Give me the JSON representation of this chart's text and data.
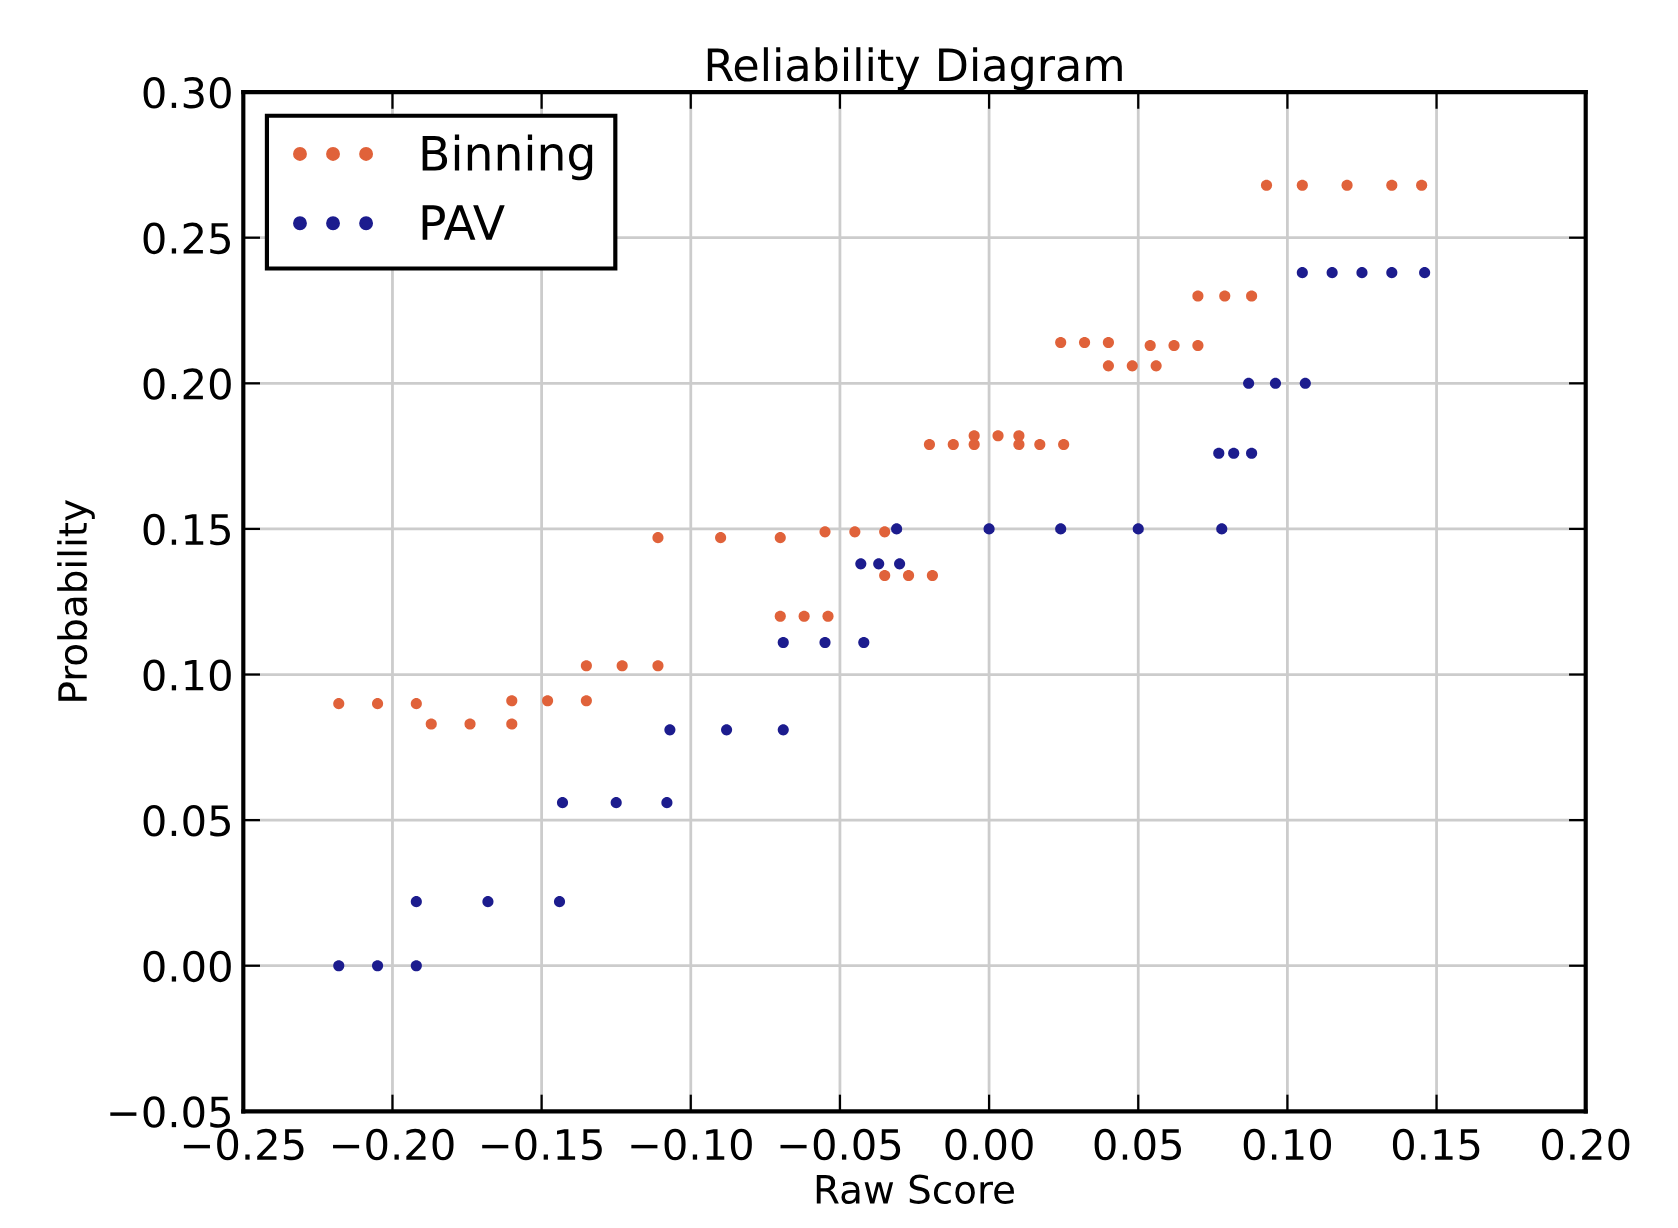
{
  "chart_data": {
    "type": "scatter",
    "title": "Reliability Diagram",
    "xlabel": "Raw Score",
    "ylabel": "Probability",
    "xlim": [
      -0.25,
      0.2
    ],
    "ylim": [
      -0.05,
      0.3
    ],
    "xticks": [
      {
        "value": -0.25,
        "label": "−0.25"
      },
      {
        "value": -0.2,
        "label": "−0.20"
      },
      {
        "value": -0.15,
        "label": "−0.15"
      },
      {
        "value": -0.1,
        "label": "−0.10"
      },
      {
        "value": -0.05,
        "label": "−0.05"
      },
      {
        "value": 0,
        "label": "0.00"
      },
      {
        "value": 0.05,
        "label": "0.05"
      },
      {
        "value": 0.1,
        "label": "0.10"
      },
      {
        "value": 0.15,
        "label": "0.15"
      },
      {
        "value": 0.2,
        "label": "0.20"
      }
    ],
    "yticks": [
      {
        "value": -0.05,
        "label": "−0.05"
      },
      {
        "value": 0,
        "label": "0.00"
      },
      {
        "value": 0.05,
        "label": "0.05"
      },
      {
        "value": 0.1,
        "label": "0.10"
      },
      {
        "value": 0.15,
        "label": "0.15"
      },
      {
        "value": 0.2,
        "label": "0.20"
      },
      {
        "value": 0.25,
        "label": "0.25"
      },
      {
        "value": 0.3,
        "label": "0.30"
      }
    ],
    "grid": true,
    "legend": "top left",
    "marker": "circle",
    "series": [
      {
        "name": "Binning",
        "color": "#e0623a",
        "x": [
          -0.218,
          -0.205,
          -0.192,
          -0.187,
          -0.174,
          -0.16,
          -0.16,
          -0.148,
          -0.135,
          -0.135,
          -0.123,
          -0.111,
          -0.111,
          -0.09,
          -0.07,
          -0.07,
          -0.062,
          -0.054,
          -0.055,
          -0.045,
          -0.035,
          -0.035,
          -0.027,
          -0.019,
          -0.02,
          -0.012,
          -0.005,
          -0.005,
          0.003,
          0.01,
          0.01,
          0.017,
          0.025,
          0.024,
          0.032,
          0.04,
          0.04,
          0.048,
          0.056,
          0.054,
          0.062,
          0.07,
          0.07,
          0.079,
          0.088,
          0.093,
          0.105,
          0.12,
          0.135,
          0.145
        ],
        "values": [
          0.09,
          0.09,
          0.09,
          0.083,
          0.083,
          0.083,
          0.091,
          0.091,
          0.091,
          0.103,
          0.103,
          0.103,
          0.147,
          0.147,
          0.147,
          0.12,
          0.12,
          0.12,
          0.149,
          0.149,
          0.149,
          0.134,
          0.134,
          0.134,
          0.179,
          0.179,
          0.179,
          0.182,
          0.182,
          0.182,
          0.179,
          0.179,
          0.179,
          0.214,
          0.214,
          0.214,
          0.206,
          0.206,
          0.206,
          0.213,
          0.213,
          0.213,
          0.23,
          0.23,
          0.23,
          0.268,
          0.268,
          0.268,
          0.268,
          0.268
        ]
      },
      {
        "name": "PAV",
        "color": "#1c1c8e",
        "x": [
          -0.218,
          -0.205,
          -0.192,
          -0.192,
          -0.168,
          -0.144,
          -0.143,
          -0.125,
          -0.108,
          -0.107,
          -0.088,
          -0.069,
          -0.069,
          -0.055,
          -0.042,
          -0.043,
          -0.037,
          -0.03,
          -0.031,
          0.0,
          0.024,
          0.05,
          0.078,
          0.077,
          0.082,
          0.088,
          0.087,
          0.096,
          0.106,
          0.105,
          0.115,
          0.125,
          0.135,
          0.146
        ],
        "values": [
          0.0,
          0.0,
          0.0,
          0.022,
          0.022,
          0.022,
          0.056,
          0.056,
          0.056,
          0.081,
          0.081,
          0.081,
          0.111,
          0.111,
          0.111,
          0.138,
          0.138,
          0.138,
          0.15,
          0.15,
          0.15,
          0.15,
          0.15,
          0.176,
          0.176,
          0.176,
          0.2,
          0.2,
          0.2,
          0.238,
          0.238,
          0.238,
          0.238,
          0.238
        ]
      }
    ]
  }
}
